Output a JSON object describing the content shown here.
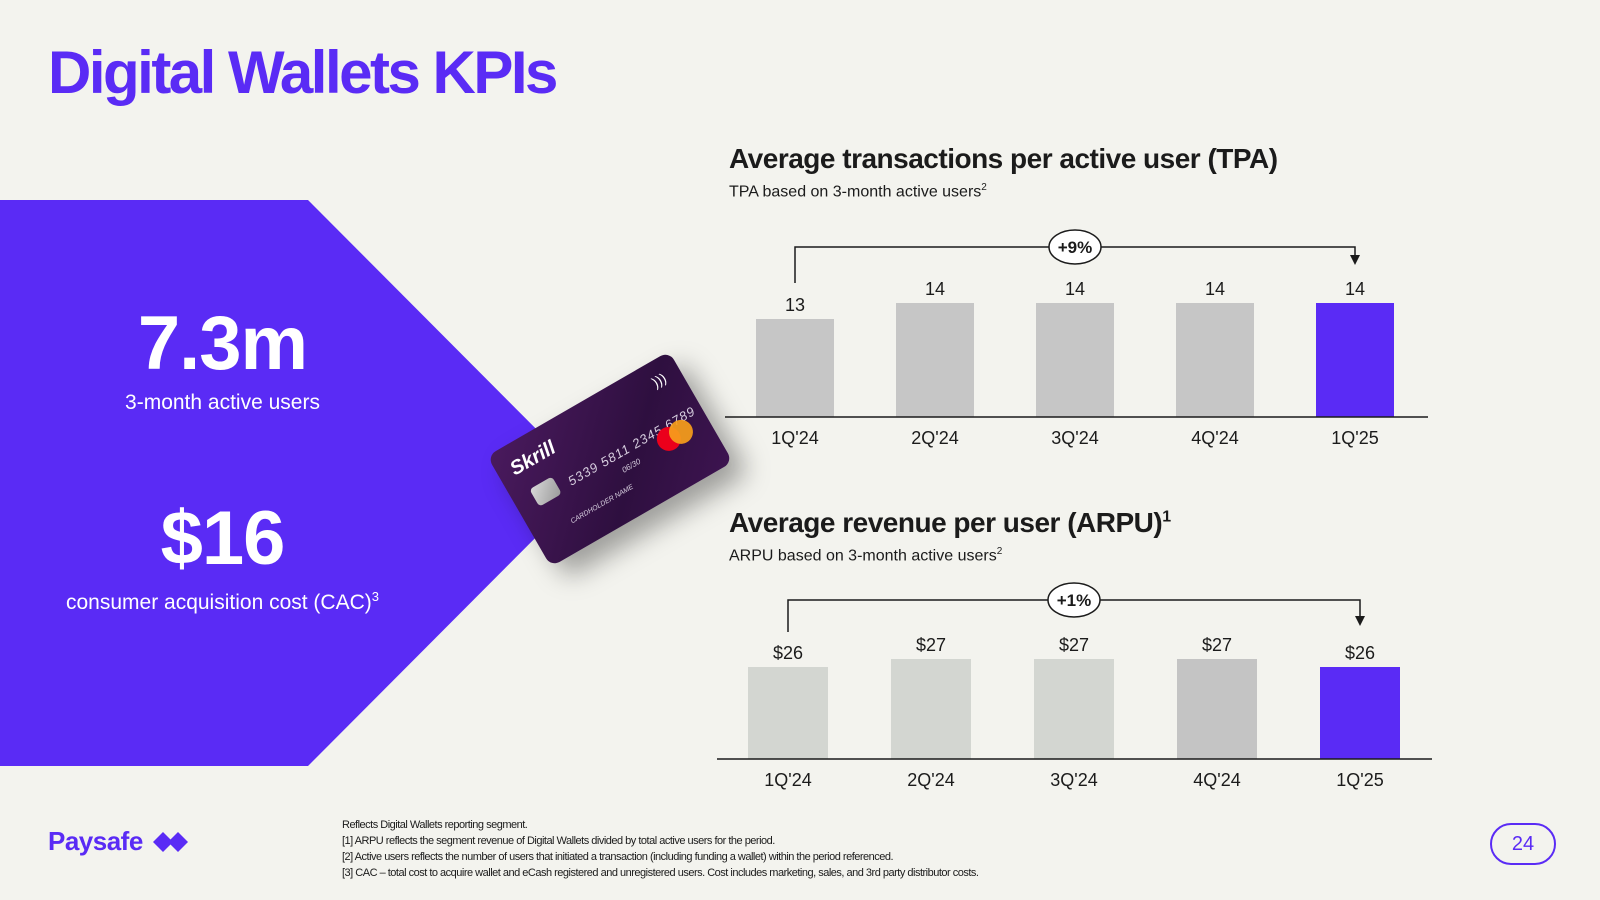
{
  "title": "Digital Wallets KPIs",
  "kpis": [
    {
      "value": "7.3m",
      "label": "3-month active users",
      "sup": ""
    },
    {
      "value": "$16",
      "label": "consumer acquisition cost (CAC)",
      "sup": "3"
    }
  ],
  "card": {
    "brand": "Skrill",
    "number": "5339 5811 2345 6789",
    "expiry": "06/30",
    "holder": "CARDHOLDER NAME"
  },
  "colors": {
    "accent": "#5a2bf5",
    "bar_gray": "#c4c4c4",
    "bar_light": "#d3d6d1",
    "background": "#f3f3ee"
  },
  "chart_data": [
    {
      "type": "bar",
      "title": "Average transactions per active user (TPA)",
      "title_sup": "",
      "subtitle": "TPA based on 3-month active users",
      "subtitle_sup": "2",
      "categories": [
        "1Q'24",
        "2Q'24",
        "3Q'24",
        "4Q'24",
        "1Q'25"
      ],
      "values": [
        13,
        14,
        14,
        14,
        14
      ],
      "labels": [
        "13",
        "14",
        "14",
        "14",
        "14"
      ],
      "growth": "+9%",
      "highlight_index": 4,
      "ylim": [
        0,
        14
      ]
    },
    {
      "type": "bar",
      "title": "Average revenue per user (ARPU)",
      "title_sup": "1",
      "subtitle": "ARPU based on 3-month active users",
      "subtitle_sup": "2",
      "categories": [
        "1Q'24",
        "2Q'24",
        "3Q'24",
        "4Q'24",
        "1Q'25"
      ],
      "values": [
        26,
        27,
        27,
        27,
        26
      ],
      "labels": [
        "$26",
        "$27",
        "$27",
        "$27",
        "$26"
      ],
      "growth": "+1%",
      "highlight_index": 4,
      "ylim": [
        0,
        27
      ]
    }
  ],
  "footer": {
    "brand": "Paysafe",
    "notes": [
      "Reflects Digital Wallets reporting segment.",
      "[1] ARPU reflects the segment revenue of Digital Wallets divided by total active users for the period.",
      "[2] Active users reflects the number of users that initiated a transaction (including funding a wallet) within the period referenced.",
      "[3] CAC – total cost to acquire wallet and eCash registered and unregistered users.  Cost  includes marketing, sales, and 3rd party distributor costs."
    ],
    "page": "24"
  }
}
